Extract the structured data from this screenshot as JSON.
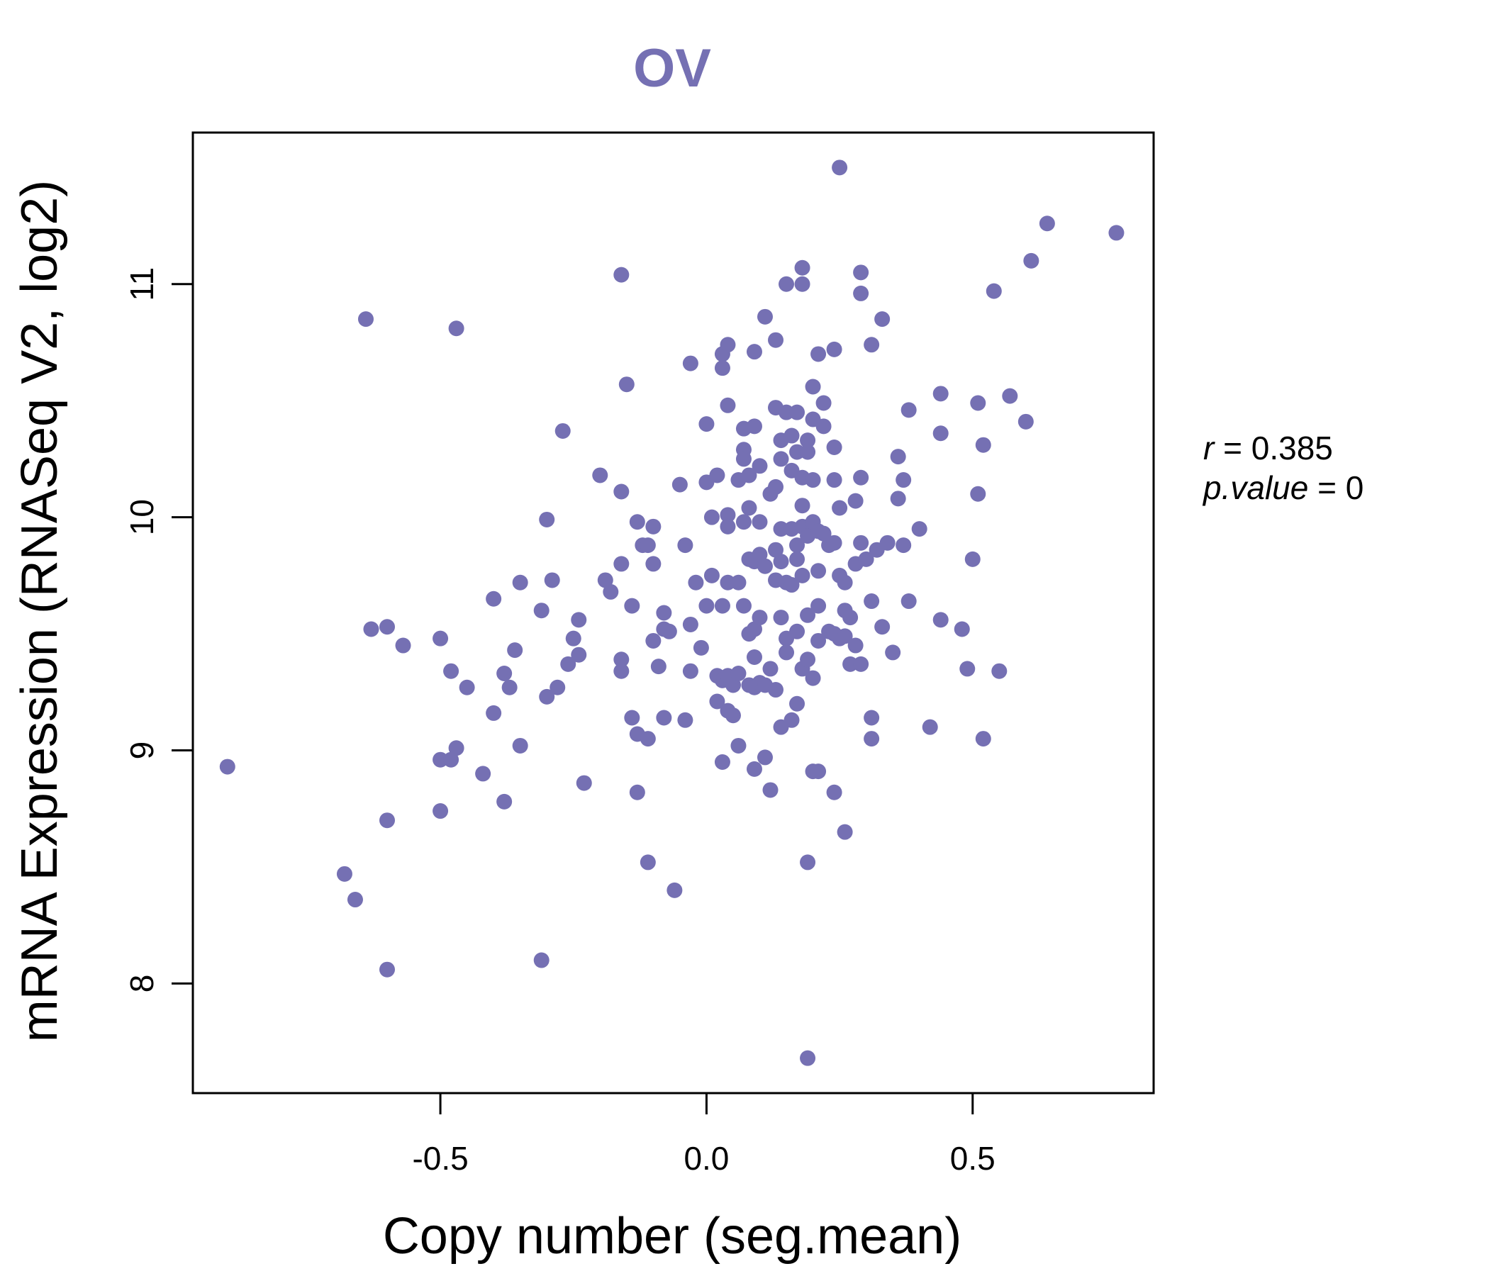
{
  "chart_data": {
    "type": "scatter",
    "title": "OV",
    "xlabel": "Copy number (seg.mean)",
    "ylabel": "mRNA Expression (RNASeq V2, log2)",
    "xlim": [
      -0.965,
      0.84
    ],
    "ylim": [
      7.53,
      11.65
    ],
    "x_ticks": [
      -0.5,
      0.0,
      0.5
    ],
    "x_tick_labels": [
      "-0.5",
      "0.0",
      "0.5"
    ],
    "y_ticks": [
      8,
      9,
      10,
      11
    ],
    "y_tick_labels": [
      "8",
      "9",
      "10",
      "11"
    ],
    "grid": false,
    "legend": "none",
    "point_color": "#7570b3",
    "title_color": "#7570b3",
    "stats": {
      "r_label": "r",
      "r_value": "0.385",
      "p_label": "p.value",
      "p_value": "0"
    },
    "points": [
      [
        -0.9,
        8.93
      ],
      [
        -0.64,
        10.85
      ],
      [
        -0.63,
        9.52
      ],
      [
        -0.6,
        9.53
      ],
      [
        -0.57,
        9.45
      ],
      [
        -0.6,
        8.7
      ],
      [
        -0.68,
        8.47
      ],
      [
        -0.66,
        8.36
      ],
      [
        -0.6,
        8.06
      ],
      [
        -0.47,
        10.81
      ],
      [
        -0.5,
        9.48
      ],
      [
        -0.48,
        9.34
      ],
      [
        -0.45,
        9.27
      ],
      [
        -0.5,
        8.96
      ],
      [
        -0.48,
        8.96
      ],
      [
        -0.47,
        9.01
      ],
      [
        -0.42,
        8.9
      ],
      [
        -0.5,
        8.74
      ],
      [
        -0.4,
        9.65
      ],
      [
        -0.38,
        9.33
      ],
      [
        -0.36,
        9.43
      ],
      [
        -0.37,
        9.27
      ],
      [
        -0.4,
        9.16
      ],
      [
        -0.35,
        9.72
      ],
      [
        -0.35,
        9.02
      ],
      [
        -0.38,
        8.78
      ],
      [
        -0.3,
        9.99
      ],
      [
        -0.29,
        9.73
      ],
      [
        -0.31,
        9.6
      ],
      [
        -0.3,
        9.23
      ],
      [
        -0.28,
        9.27
      ],
      [
        -0.27,
        10.37
      ],
      [
        -0.31,
        8.1
      ],
      [
        -0.25,
        9.48
      ],
      [
        -0.24,
        9.56
      ],
      [
        -0.24,
        9.41
      ],
      [
        -0.26,
        9.37
      ],
      [
        -0.23,
        8.86
      ],
      [
        -0.2,
        10.18
      ],
      [
        -0.19,
        9.73
      ],
      [
        -0.18,
        9.68
      ],
      [
        -0.16,
        11.04
      ],
      [
        -0.15,
        10.57
      ],
      [
        -0.16,
        10.11
      ],
      [
        -0.16,
        9.8
      ],
      [
        -0.16,
        9.39
      ],
      [
        -0.16,
        9.34
      ],
      [
        -0.14,
        9.62
      ],
      [
        -0.14,
        9.14
      ],
      [
        -0.13,
        9.98
      ],
      [
        -0.12,
        9.88
      ],
      [
        -0.11,
        9.88
      ],
      [
        -0.1,
        9.96
      ],
      [
        -0.1,
        9.8
      ],
      [
        -0.13,
        9.07
      ],
      [
        -0.11,
        9.05
      ],
      [
        -0.13,
        8.82
      ],
      [
        -0.11,
        8.52
      ],
      [
        -0.08,
        9.59
      ],
      [
        -0.08,
        9.52
      ],
      [
        -0.07,
        9.51
      ],
      [
        -0.1,
        9.47
      ],
      [
        -0.09,
        9.36
      ],
      [
        -0.08,
        9.14
      ],
      [
        -0.06,
        8.4
      ],
      [
        -0.05,
        10.14
      ],
      [
        -0.04,
        9.88
      ],
      [
        -0.03,
        10.66
      ],
      [
        -0.03,
        9.54
      ],
      [
        -0.03,
        9.34
      ],
      [
        -0.04,
        9.13
      ],
      [
        -0.02,
        9.72
      ],
      [
        -0.01,
        9.44
      ],
      [
        0.0,
        10.15
      ],
      [
        0.0,
        10.4
      ],
      [
        0.0,
        9.62
      ],
      [
        0.01,
        9.75
      ],
      [
        0.01,
        10.0
      ],
      [
        0.02,
        10.18
      ],
      [
        0.02,
        9.32
      ],
      [
        0.02,
        9.21
      ],
      [
        0.03,
        9.3
      ],
      [
        0.03,
        8.95
      ],
      [
        0.03,
        9.62
      ],
      [
        0.03,
        10.7
      ],
      [
        0.03,
        10.64
      ],
      [
        0.04,
        10.74
      ],
      [
        0.04,
        10.48
      ],
      [
        0.04,
        10.01
      ],
      [
        0.04,
        9.96
      ],
      [
        0.04,
        9.72
      ],
      [
        0.04,
        9.32
      ],
      [
        0.04,
        9.17
      ],
      [
        0.05,
        9.28
      ],
      [
        0.05,
        9.15
      ],
      [
        0.06,
        10.16
      ],
      [
        0.06,
        9.02
      ],
      [
        0.06,
        9.72
      ],
      [
        0.06,
        9.33
      ],
      [
        0.07,
        10.38
      ],
      [
        0.07,
        10.29
      ],
      [
        0.07,
        10.25
      ],
      [
        0.07,
        9.98
      ],
      [
        0.07,
        9.62
      ],
      [
        0.08,
        9.82
      ],
      [
        0.08,
        9.5
      ],
      [
        0.08,
        10.18
      ],
      [
        0.08,
        10.04
      ],
      [
        0.08,
        9.28
      ],
      [
        0.09,
        10.71
      ],
      [
        0.09,
        10.39
      ],
      [
        0.09,
        9.81
      ],
      [
        0.09,
        9.52
      ],
      [
        0.09,
        9.4
      ],
      [
        0.09,
        9.27
      ],
      [
        0.09,
        8.92
      ],
      [
        0.1,
        10.22
      ],
      [
        0.1,
        9.98
      ],
      [
        0.1,
        9.84
      ],
      [
        0.1,
        9.57
      ],
      [
        0.1,
        9.29
      ],
      [
        0.11,
        10.86
      ],
      [
        0.11,
        9.79
      ],
      [
        0.11,
        8.97
      ],
      [
        0.11,
        9.28
      ],
      [
        0.12,
        10.1
      ],
      [
        0.12,
        9.35
      ],
      [
        0.12,
        8.83
      ],
      [
        0.13,
        10.76
      ],
      [
        0.13,
        10.47
      ],
      [
        0.13,
        10.13
      ],
      [
        0.13,
        9.86
      ],
      [
        0.13,
        9.73
      ],
      [
        0.13,
        9.26
      ],
      [
        0.14,
        10.33
      ],
      [
        0.14,
        10.25
      ],
      [
        0.14,
        9.95
      ],
      [
        0.14,
        9.81
      ],
      [
        0.14,
        9.57
      ],
      [
        0.14,
        9.1
      ],
      [
        0.15,
        11.0
      ],
      [
        0.15,
        10.45
      ],
      [
        0.15,
        9.72
      ],
      [
        0.15,
        9.48
      ],
      [
        0.15,
        9.42
      ],
      [
        0.16,
        10.35
      ],
      [
        0.16,
        10.2
      ],
      [
        0.16,
        9.95
      ],
      [
        0.16,
        9.71
      ],
      [
        0.16,
        9.13
      ],
      [
        0.17,
        10.45
      ],
      [
        0.17,
        10.28
      ],
      [
        0.17,
        9.88
      ],
      [
        0.17,
        9.82
      ],
      [
        0.17,
        9.51
      ],
      [
        0.17,
        9.2
      ],
      [
        0.18,
        11.07
      ],
      [
        0.18,
        11.0
      ],
      [
        0.18,
        10.17
      ],
      [
        0.18,
        10.05
      ],
      [
        0.18,
        9.96
      ],
      [
        0.18,
        9.75
      ],
      [
        0.18,
        9.35
      ],
      [
        0.19,
        10.33
      ],
      [
        0.19,
        10.28
      ],
      [
        0.19,
        9.92
      ],
      [
        0.19,
        9.58
      ],
      [
        0.19,
        9.39
      ],
      [
        0.19,
        8.52
      ],
      [
        0.19,
        7.68
      ],
      [
        0.2,
        10.56
      ],
      [
        0.2,
        10.42
      ],
      [
        0.2,
        10.16
      ],
      [
        0.2,
        9.98
      ],
      [
        0.2,
        9.31
      ],
      [
        0.2,
        8.91
      ],
      [
        0.21,
        10.7
      ],
      [
        0.21,
        9.94
      ],
      [
        0.21,
        9.77
      ],
      [
        0.21,
        9.62
      ],
      [
        0.21,
        9.47
      ],
      [
        0.21,
        8.91
      ],
      [
        0.22,
        10.39
      ],
      [
        0.22,
        10.49
      ],
      [
        0.22,
        9.93
      ],
      [
        0.23,
        9.88
      ],
      [
        0.23,
        9.51
      ],
      [
        0.24,
        10.72
      ],
      [
        0.24,
        10.3
      ],
      [
        0.24,
        10.16
      ],
      [
        0.24,
        9.89
      ],
      [
        0.24,
        9.5
      ],
      [
        0.24,
        8.82
      ],
      [
        0.25,
        11.5
      ],
      [
        0.25,
        10.04
      ],
      [
        0.25,
        9.75
      ],
      [
        0.25,
        9.48
      ],
      [
        0.26,
        9.72
      ],
      [
        0.26,
        9.6
      ],
      [
        0.26,
        9.49
      ],
      [
        0.26,
        8.65
      ],
      [
        0.27,
        9.57
      ],
      [
        0.27,
        9.37
      ],
      [
        0.28,
        10.07
      ],
      [
        0.28,
        9.45
      ],
      [
        0.28,
        9.8
      ],
      [
        0.29,
        11.05
      ],
      [
        0.29,
        10.96
      ],
      [
        0.29,
        10.17
      ],
      [
        0.29,
        9.89
      ],
      [
        0.29,
        9.37
      ],
      [
        0.3,
        9.82
      ],
      [
        0.31,
        10.74
      ],
      [
        0.31,
        9.64
      ],
      [
        0.31,
        9.14
      ],
      [
        0.31,
        9.05
      ],
      [
        0.32,
        9.86
      ],
      [
        0.33,
        10.85
      ],
      [
        0.33,
        9.53
      ],
      [
        0.34,
        9.89
      ],
      [
        0.35,
        9.42
      ],
      [
        0.36,
        10.26
      ],
      [
        0.36,
        10.08
      ],
      [
        0.37,
        10.16
      ],
      [
        0.37,
        9.88
      ],
      [
        0.38,
        10.46
      ],
      [
        0.38,
        9.64
      ],
      [
        0.4,
        9.95
      ],
      [
        0.42,
        9.1
      ],
      [
        0.44,
        10.53
      ],
      [
        0.44,
        10.36
      ],
      [
        0.44,
        9.56
      ],
      [
        0.48,
        9.52
      ],
      [
        0.49,
        9.35
      ],
      [
        0.5,
        9.82
      ],
      [
        0.51,
        10.1
      ],
      [
        0.51,
        10.49
      ],
      [
        0.52,
        9.05
      ],
      [
        0.52,
        10.31
      ],
      [
        0.54,
        10.97
      ],
      [
        0.55,
        9.34
      ],
      [
        0.57,
        10.52
      ],
      [
        0.6,
        10.41
      ],
      [
        0.61,
        11.1
      ],
      [
        0.64,
        11.26
      ],
      [
        0.77,
        11.22
      ]
    ]
  }
}
